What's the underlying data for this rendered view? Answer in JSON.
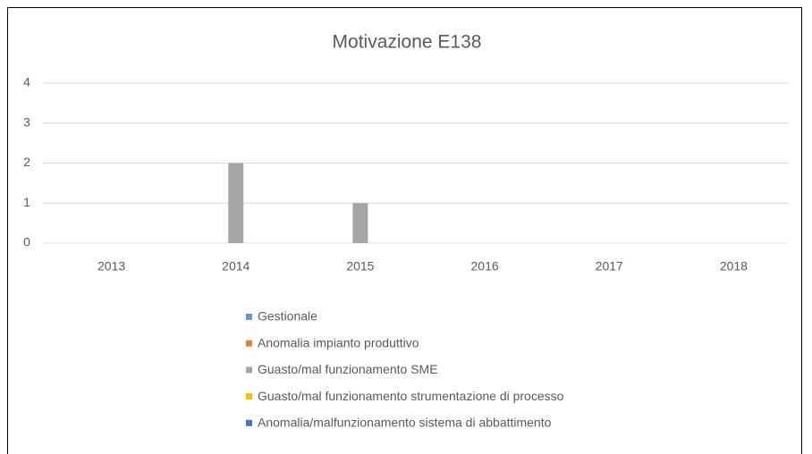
{
  "chart_data": {
    "type": "bar",
    "title": "Motivazione E138",
    "categories": [
      "2013",
      "2014",
      "2015",
      "2016",
      "2017",
      "2018"
    ],
    "series": [
      {
        "name": "Gestionale",
        "color": "#5b9bd5",
        "values": [
          0,
          0,
          0,
          0,
          0,
          0
        ]
      },
      {
        "name": "Anomalia impianto produttivo",
        "color": "#ed7d31",
        "values": [
          0,
          0,
          0,
          0,
          0,
          0
        ]
      },
      {
        "name": "Guasto/mal funzionamento SME",
        "color": "#a5a5a5",
        "values": [
          0,
          2,
          1,
          0,
          0,
          0
        ]
      },
      {
        "name": "Guasto/mal funzionamento strumentazione di processo",
        "color": "#ffc000",
        "values": [
          0,
          0,
          0,
          0,
          0,
          0
        ]
      },
      {
        "name": "Anomalia/malfunzionamento sistema di abbattimento",
        "color": "#4472c4",
        "values": [
          0,
          0,
          0,
          0,
          0,
          0
        ]
      }
    ],
    "ylim": [
      0,
      4
    ],
    "yticks": [
      0,
      1,
      2,
      3,
      4
    ],
    "grid": true,
    "legend": "bottom"
  }
}
